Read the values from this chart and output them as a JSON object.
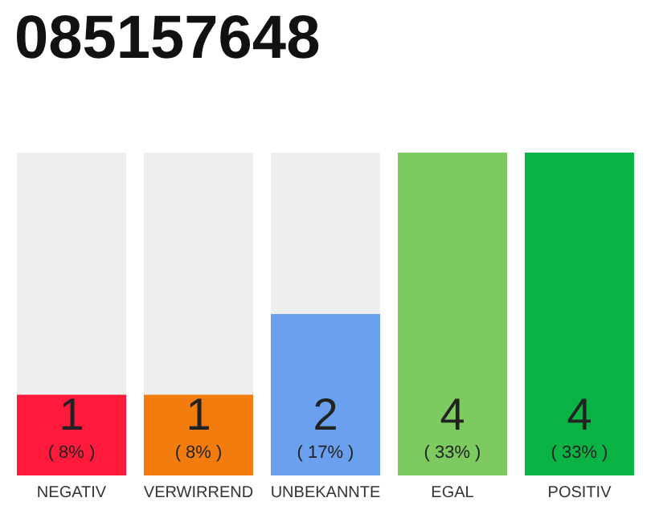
{
  "chart_data": {
    "type": "bar",
    "title": "085157648",
    "categories": [
      "NEGATIV",
      "VERWIRREND",
      "UNBEKANNTE",
      "EGAL",
      "POSITIV"
    ],
    "values": [
      1,
      1,
      2,
      4,
      4
    ],
    "colors": [
      "#ff1a3c",
      "#f27c0e",
      "#6aa0ee",
      "#7dcb60",
      "#0bb345"
    ],
    "value_labels": [
      "1\n( 8% )",
      "1\n( 8% )",
      "2\n( 17% )",
      "4\n( 33% )",
      "4\n( 33% )"
    ],
    "ylim": [
      0,
      4
    ],
    "grid": false
  }
}
